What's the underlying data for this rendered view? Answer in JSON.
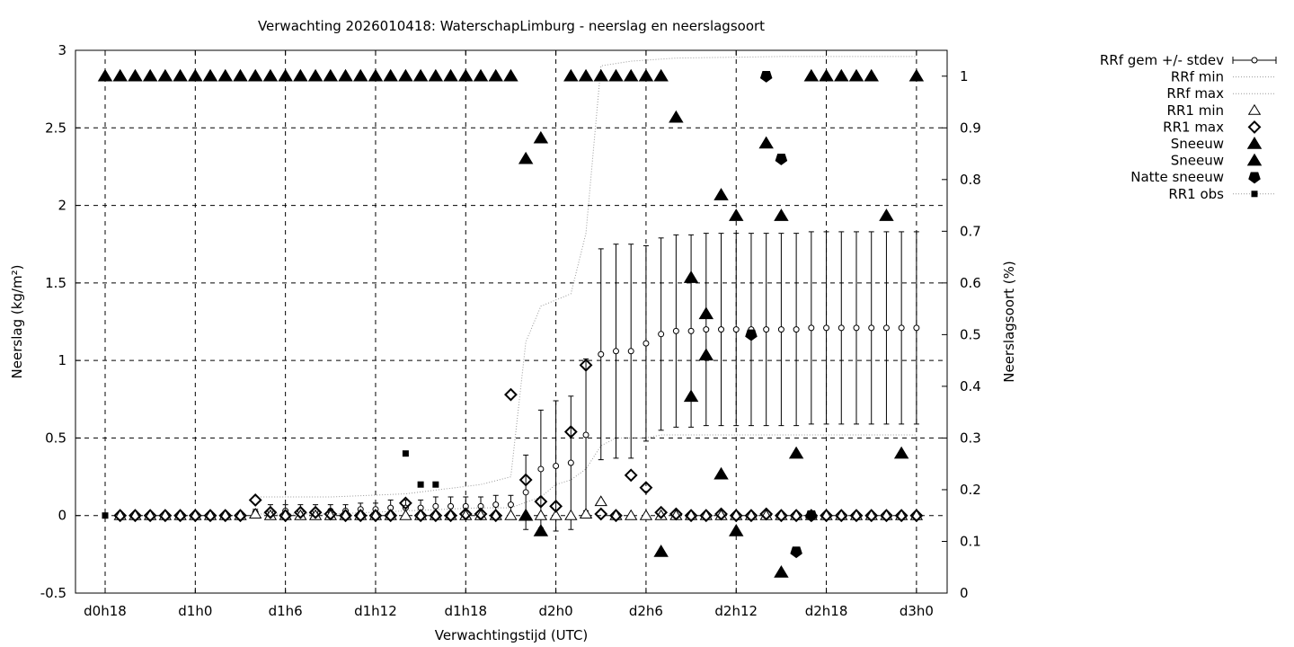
{
  "chart_data": {
    "type": "line",
    "title": "Verwachting 2026010418: WaterschapLimburg - neerslag en neerslagsoort",
    "xlabel": "Verwachtingstijd (UTC)",
    "ylabel": "Neerslag (kg/m²)",
    "y2label": "Neerslagsoort (%)",
    "ylim": [
      -0.5,
      3
    ],
    "y2lim": [
      0,
      1.05
    ],
    "xlim": [
      0,
      54
    ],
    "x_ticks": [
      {
        "x": 0,
        "label": "d0h18"
      },
      {
        "x": 6,
        "label": "d1h0"
      },
      {
        "x": 12,
        "label": "d1h6"
      },
      {
        "x": 18,
        "label": "d1h12"
      },
      {
        "x": 24,
        "label": "d1h18"
      },
      {
        "x": 30,
        "label": "d2h0"
      },
      {
        "x": 36,
        "label": "d2h6"
      },
      {
        "x": 42,
        "label": "d2h12"
      },
      {
        "x": 48,
        "label": "d2h18"
      },
      {
        "x": 54,
        "label": "d3h0"
      }
    ],
    "y_ticks": [
      "-0.5",
      "0",
      "0.5",
      "1",
      "1.5",
      "2",
      "2.5",
      "3"
    ],
    "y2_ticks": [
      "0",
      "0.1",
      "0.2",
      "0.3",
      "0.4",
      "0.5",
      "0.6",
      "0.7",
      "0.8",
      "0.9",
      "1"
    ],
    "grid": true,
    "legend_position": "right",
    "legend": [
      {
        "label": "RRf gem +/- stdev",
        "symbol": "errorbar"
      },
      {
        "label": "RRf min",
        "symbol": "dotted"
      },
      {
        "label": "RRf max",
        "symbol": "dotted"
      },
      {
        "label": "RR1 min",
        "symbol": "triangle-open"
      },
      {
        "label": "RR1 max",
        "symbol": "diamond-open"
      },
      {
        "label": "Sneeuw",
        "symbol": "triangle-filled"
      },
      {
        "label": "Sneeuw",
        "symbol": "triangle-filled"
      },
      {
        "label": "Natte sneeuw",
        "symbol": "pentagon-filled"
      },
      {
        "label": "RR1 obs",
        "symbol": "square-filled-dotted"
      }
    ],
    "rrf_mean": [
      [
        1,
        0
      ],
      [
        2,
        0
      ],
      [
        3,
        0
      ],
      [
        4,
        0
      ],
      [
        5,
        0
      ],
      [
        6,
        0
      ],
      [
        7,
        0
      ],
      [
        8,
        0
      ],
      [
        9,
        0
      ],
      [
        10,
        0.02
      ],
      [
        11,
        0.03
      ],
      [
        12,
        0.03
      ],
      [
        13,
        0.03
      ],
      [
        14,
        0.03
      ],
      [
        15,
        0.03
      ],
      [
        16,
        0.03
      ],
      [
        17,
        0.04
      ],
      [
        18,
        0.04
      ],
      [
        19,
        0.05
      ],
      [
        20,
        0.05
      ],
      [
        21,
        0.05
      ],
      [
        22,
        0.06
      ],
      [
        23,
        0.06
      ],
      [
        24,
        0.06
      ],
      [
        25,
        0.06
      ],
      [
        26,
        0.07
      ],
      [
        27,
        0.07
      ],
      [
        28,
        0.15
      ],
      [
        29,
        0.3
      ],
      [
        30,
        0.32
      ],
      [
        31,
        0.34
      ],
      [
        32,
        0.52
      ],
      [
        33,
        1.04
      ],
      [
        34,
        1.06
      ],
      [
        35,
        1.06
      ],
      [
        36,
        1.11
      ],
      [
        37,
        1.17
      ],
      [
        38,
        1.19
      ],
      [
        39,
        1.19
      ],
      [
        40,
        1.2
      ],
      [
        41,
        1.2
      ],
      [
        42,
        1.2
      ],
      [
        43,
        1.2
      ],
      [
        44,
        1.2
      ],
      [
        45,
        1.2
      ],
      [
        46,
        1.2
      ],
      [
        47,
        1.21
      ],
      [
        48,
        1.21
      ],
      [
        49,
        1.21
      ],
      [
        50,
        1.21
      ],
      [
        51,
        1.21
      ],
      [
        52,
        1.21
      ],
      [
        53,
        1.21
      ],
      [
        54,
        1.21
      ]
    ],
    "rrf_stdev": [
      [
        1,
        0
      ],
      [
        2,
        0
      ],
      [
        3,
        0
      ],
      [
        4,
        0
      ],
      [
        5,
        0
      ],
      [
        6,
        0
      ],
      [
        7,
        0
      ],
      [
        8,
        0
      ],
      [
        9,
        0
      ],
      [
        10,
        0.02
      ],
      [
        11,
        0.04
      ],
      [
        12,
        0.04
      ],
      [
        13,
        0.04
      ],
      [
        14,
        0.04
      ],
      [
        15,
        0.04
      ],
      [
        16,
        0.04
      ],
      [
        17,
        0.04
      ],
      [
        18,
        0.04
      ],
      [
        19,
        0.05
      ],
      [
        20,
        0.05
      ],
      [
        21,
        0.05
      ],
      [
        22,
        0.06
      ],
      [
        23,
        0.06
      ],
      [
        24,
        0.06
      ],
      [
        25,
        0.06
      ],
      [
        26,
        0.06
      ],
      [
        27,
        0.06
      ],
      [
        28,
        0.24
      ],
      [
        29,
        0.38
      ],
      [
        30,
        0.42
      ],
      [
        31,
        0.43
      ],
      [
        32,
        0.49
      ],
      [
        33,
        0.68
      ],
      [
        34,
        0.69
      ],
      [
        35,
        0.69
      ],
      [
        36,
        0.63
      ],
      [
        37,
        0.62
      ],
      [
        38,
        0.62
      ],
      [
        39,
        0.62
      ],
      [
        40,
        0.62
      ],
      [
        41,
        0.62
      ],
      [
        42,
        0.62
      ],
      [
        43,
        0.62
      ],
      [
        44,
        0.62
      ],
      [
        45,
        0.62
      ],
      [
        46,
        0.62
      ],
      [
        47,
        0.62
      ],
      [
        48,
        0.62
      ],
      [
        49,
        0.62
      ],
      [
        50,
        0.62
      ],
      [
        51,
        0.62
      ],
      [
        52,
        0.62
      ],
      [
        53,
        0.62
      ],
      [
        54,
        0.62
      ]
    ],
    "rrf_min": [
      [
        10,
        0.01
      ],
      [
        11,
        0.01
      ],
      [
        15,
        0.01
      ],
      [
        20,
        0.03
      ],
      [
        25,
        0.05
      ],
      [
        27,
        0.05
      ],
      [
        29,
        0.12
      ],
      [
        30,
        0.2
      ],
      [
        31,
        0.23
      ],
      [
        32,
        0.3
      ],
      [
        33,
        0.45
      ],
      [
        34,
        0.5
      ],
      [
        35,
        0.5
      ],
      [
        36,
        0.5
      ],
      [
        37,
        0.52
      ],
      [
        40,
        0.52
      ],
      [
        54,
        0.52
      ]
    ],
    "rrf_max": [
      [
        10,
        0.12
      ],
      [
        15,
        0.12
      ],
      [
        20,
        0.14
      ],
      [
        25,
        0.2
      ],
      [
        27,
        0.25
      ],
      [
        28,
        1.12
      ],
      [
        29,
        1.35
      ],
      [
        31,
        1.43
      ],
      [
        32,
        1.82
      ],
      [
        33,
        2.9
      ],
      [
        35,
        2.93
      ],
      [
        38,
        2.95
      ],
      [
        45,
        2.96
      ],
      [
        54,
        2.96
      ]
    ],
    "rr1_min": [
      [
        1,
        0
      ],
      [
        2,
        0
      ],
      [
        3,
        0
      ],
      [
        4,
        0
      ],
      [
        5,
        0
      ],
      [
        6,
        0
      ],
      [
        7,
        0
      ],
      [
        8,
        0
      ],
      [
        9,
        0
      ],
      [
        10,
        0.01
      ],
      [
        11,
        0
      ],
      [
        12,
        0
      ],
      [
        13,
        0
      ],
      [
        14,
        0
      ],
      [
        15,
        0
      ],
      [
        16,
        0
      ],
      [
        17,
        0
      ],
      [
        18,
        0
      ],
      [
        19,
        0
      ],
      [
        20,
        0
      ],
      [
        21,
        0
      ],
      [
        22,
        0
      ],
      [
        23,
        0
      ],
      [
        24,
        0
      ],
      [
        25,
        0
      ],
      [
        26,
        0
      ],
      [
        27,
        0
      ],
      [
        28,
        0
      ],
      [
        29,
        0
      ],
      [
        30,
        0
      ],
      [
        31,
        0
      ],
      [
        32,
        0.01
      ],
      [
        33,
        0.09
      ],
      [
        34,
        0
      ],
      [
        35,
        0
      ],
      [
        36,
        0
      ],
      [
        37,
        0
      ],
      [
        38,
        0
      ],
      [
        39,
        0
      ],
      [
        40,
        0
      ],
      [
        41,
        0
      ],
      [
        42,
        0
      ],
      [
        43,
        0
      ],
      [
        44,
        0
      ],
      [
        45,
        0
      ],
      [
        46,
        0
      ],
      [
        47,
        0
      ],
      [
        48,
        0
      ],
      [
        49,
        0
      ],
      [
        50,
        0
      ],
      [
        51,
        0
      ],
      [
        52,
        0
      ],
      [
        53,
        0
      ],
      [
        54,
        0
      ]
    ],
    "rr1_max": [
      [
        1,
        0
      ],
      [
        2,
        0
      ],
      [
        3,
        0
      ],
      [
        4,
        0
      ],
      [
        5,
        0
      ],
      [
        6,
        0
      ],
      [
        7,
        0
      ],
      [
        8,
        0
      ],
      [
        9,
        0
      ],
      [
        10,
        0.1
      ],
      [
        11,
        0.02
      ],
      [
        12,
        0
      ],
      [
        13,
        0.02
      ],
      [
        14,
        0.02
      ],
      [
        15,
        0.01
      ],
      [
        16,
        0
      ],
      [
        17,
        0
      ],
      [
        18,
        0
      ],
      [
        19,
        0
      ],
      [
        20,
        0.08
      ],
      [
        21,
        0
      ],
      [
        22,
        0
      ],
      [
        23,
        0
      ],
      [
        24,
        0.01
      ],
      [
        25,
        0.01
      ],
      [
        26,
        0
      ],
      [
        27,
        0.78
      ],
      [
        28,
        0.23
      ],
      [
        29,
        0.09
      ],
      [
        30,
        0.06
      ],
      [
        31,
        0.54
      ],
      [
        32,
        0.97
      ],
      [
        33,
        0.01
      ],
      [
        34,
        0
      ],
      [
        35,
        0.26
      ],
      [
        36,
        0.18
      ],
      [
        37,
        0.02
      ],
      [
        38,
        0.01
      ],
      [
        39,
        0
      ],
      [
        40,
        0
      ],
      [
        41,
        0.01
      ],
      [
        42,
        0
      ],
      [
        43,
        0
      ],
      [
        44,
        0.01
      ],
      [
        45,
        0
      ],
      [
        46,
        0
      ],
      [
        47,
        0
      ],
      [
        48,
        0
      ],
      [
        49,
        0
      ],
      [
        50,
        0
      ],
      [
        51,
        0
      ],
      [
        52,
        0
      ],
      [
        53,
        0
      ],
      [
        54,
        0
      ]
    ],
    "sneeuw_pct": [
      [
        0,
        1
      ],
      [
        1,
        1
      ],
      [
        2,
        1
      ],
      [
        3,
        1
      ],
      [
        4,
        1
      ],
      [
        5,
        1
      ],
      [
        6,
        1
      ],
      [
        7,
        1
      ],
      [
        8,
        1
      ],
      [
        9,
        1
      ],
      [
        10,
        1
      ],
      [
        11,
        1
      ],
      [
        12,
        1
      ],
      [
        13,
        1
      ],
      [
        14,
        1
      ],
      [
        15,
        1
      ],
      [
        16,
        1
      ],
      [
        17,
        1
      ],
      [
        18,
        1
      ],
      [
        19,
        1
      ],
      [
        20,
        1
      ],
      [
        21,
        1
      ],
      [
        22,
        1
      ],
      [
        23,
        1
      ],
      [
        24,
        1
      ],
      [
        25,
        1
      ],
      [
        26,
        1
      ],
      [
        27,
        1
      ],
      [
        28,
        0.84
      ],
      [
        29,
        0.88
      ],
      [
        31,
        1
      ],
      [
        32,
        1
      ],
      [
        33,
        1
      ],
      [
        34,
        1
      ],
      [
        35,
        1
      ],
      [
        36,
        1
      ],
      [
        37,
        1
      ],
      [
        38,
        0.92
      ],
      [
        39,
        0.61
      ],
      [
        40,
        0.54
      ],
      [
        41,
        0.77
      ],
      [
        42,
        0.73
      ],
      [
        44,
        0.87
      ],
      [
        45,
        0.73
      ],
      [
        46,
        0.27
      ],
      [
        47,
        1
      ],
      [
        48,
        1
      ],
      [
        49,
        1
      ],
      [
        50,
        1
      ],
      [
        51,
        1
      ],
      [
        52,
        0.73
      ],
      [
        53,
        0.27
      ],
      [
        54,
        1
      ]
    ],
    "sneeuw2_pct": [
      [
        28,
        0.15
      ],
      [
        29,
        0.12
      ],
      [
        37,
        0.08
      ],
      [
        39,
        0.38
      ],
      [
        40,
        0.46
      ],
      [
        41,
        0.23
      ],
      [
        42,
        0.12
      ],
      [
        45,
        0.04
      ]
    ],
    "natte_sneeuw_pct": [
      [
        43,
        0.5
      ],
      [
        44,
        1
      ],
      [
        45,
        0.84
      ],
      [
        46,
        0.08
      ],
      [
        47,
        0.15
      ]
    ],
    "rr1_obs": [
      [
        0,
        0
      ],
      [
        20,
        0.4
      ],
      [
        21,
        0.2
      ],
      [
        22,
        0.2
      ]
    ]
  }
}
